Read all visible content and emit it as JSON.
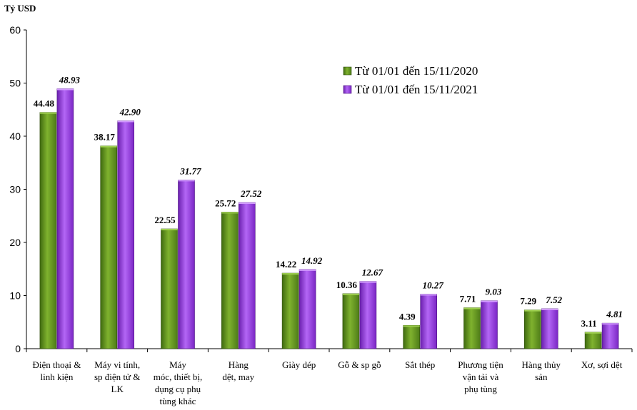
{
  "chart_data": {
    "type": "bar",
    "unit_label": "Tỷ USD",
    "categories": [
      [
        "Điện thoại &",
        "linh kiện"
      ],
      [
        "Máy vi tính,",
        "sp điện tử &",
        "LK"
      ],
      [
        "Máy",
        "móc, thiết bị,",
        "dụng cụ phụ",
        "tùng khác"
      ],
      [
        "Hàng",
        "dệt, may"
      ],
      [
        "Giày dép"
      ],
      [
        "Gỗ & sp gỗ"
      ],
      [
        "Sắt thép"
      ],
      [
        "Phương tiện",
        "vận tải và",
        "phụ tùng"
      ],
      [
        "Hàng thủy",
        "sản"
      ],
      [
        "Xơ, sợi dệt"
      ]
    ],
    "series": [
      {
        "name": "Từ 01/01 đến 15/11/2020",
        "color": "#5b8a1e",
        "values": [
          44.48,
          38.17,
          22.55,
          25.72,
          14.22,
          10.36,
          4.39,
          7.71,
          7.29,
          3.11
        ],
        "labels": [
          "44.48",
          "38.17",
          "22.55",
          "25.72",
          "14.22",
          "10.36",
          "4.39",
          "7.71",
          "7.29",
          "3.11"
        ]
      },
      {
        "name": "Từ 01/01 đến 15/11/2021",
        "color": "#8e2fd8",
        "values": [
          48.93,
          42.9,
          31.77,
          27.52,
          14.92,
          12.67,
          10.27,
          9.03,
          7.52,
          4.81
        ],
        "labels": [
          "48.93",
          "42.90",
          "31.77",
          "27.52",
          "14.92",
          "12.67",
          "10.27",
          "9.03",
          "7.52",
          "4.81"
        ]
      }
    ],
    "y_ticks": [
      "0",
      "10",
      "20",
      "30",
      "40",
      "50",
      "60"
    ],
    "ylim": [
      0,
      60
    ],
    "grid": false,
    "legend_position": "top-right"
  }
}
